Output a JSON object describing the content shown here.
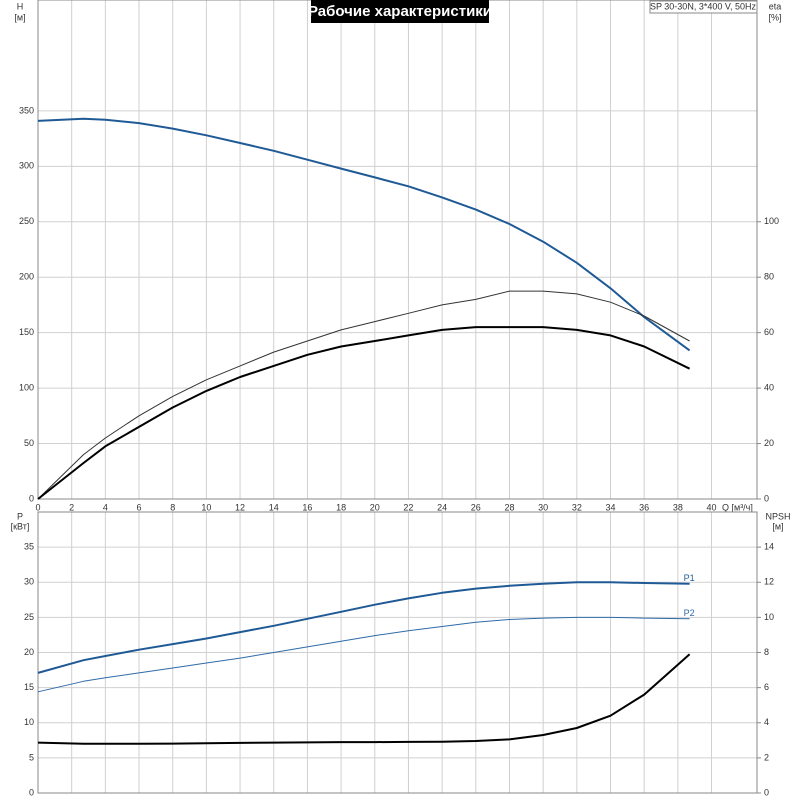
{
  "chart_data": [
    {
      "type": "line",
      "title": "Рабочие характеристики",
      "subtitle": "SP 30-30N, 3*400 V, 50Hz",
      "y_label": "H",
      "y_unit": "[м]",
      "y2_label": "eta",
      "y2_unit": "[%]",
      "x_label": "Q [м³/ч]",
      "x": [
        0,
        2.7,
        4,
        6,
        8,
        10,
        12,
        14,
        16,
        18,
        20,
        22,
        24,
        26,
        28,
        30,
        32,
        34,
        36,
        38.7
      ],
      "xlim": [
        0,
        42.7
      ],
      "xticks": [
        0,
        2,
        4,
        6,
        8,
        10,
        12,
        14,
        16,
        18,
        20,
        22,
        24,
        26,
        28,
        30,
        32,
        34,
        36,
        38,
        40
      ],
      "ylim": [
        0,
        450
      ],
      "yticks": [
        0,
        50,
        100,
        150,
        200,
        250,
        300,
        350
      ],
      "y2lim": [
        0,
        180
      ],
      "y2ticks": [
        0,
        20,
        40,
        60,
        80,
        100
      ],
      "grid": true,
      "series": [
        {
          "color": "#1f5a96",
          "line_width": 2,
          "values": [
            341,
            343,
            342,
            339,
            334,
            328,
            321,
            314,
            306,
            298,
            290,
            282,
            272,
            261,
            248,
            232,
            213,
            190,
            164,
            134
          ]
        },
        {
          "color": "#333333",
          "line_width": 1,
          "axis": "y2",
          "values": [
            0,
            16,
            22,
            30,
            37,
            43,
            48,
            53,
            57,
            61,
            64,
            67,
            70,
            72,
            75,
            75,
            74,
            71,
            66,
            57
          ]
        },
        {
          "color": "#000000",
          "line_width": 2,
          "axis": "y2",
          "values": [
            0,
            13,
            19,
            26,
            33,
            39,
            44,
            48,
            52,
            55,
            57,
            59,
            61,
            62,
            62,
            62,
            61,
            59,
            55,
            47
          ]
        }
      ]
    },
    {
      "type": "line",
      "y_label": "P",
      "y_unit": "[кВт]",
      "y2_label": "NPSH",
      "y2_unit": "[м]",
      "x": [
        0,
        2.7,
        4,
        6,
        8,
        10,
        12,
        14,
        16,
        18,
        20,
        22,
        24,
        26,
        28,
        30,
        32,
        34,
        36,
        38.7
      ],
      "xlim": [
        0,
        42.7
      ],
      "ylim": [
        0,
        40
      ],
      "yticks": [
        0,
        5,
        10,
        15,
        20,
        25,
        30,
        35
      ],
      "y2lim": [
        0,
        16
      ],
      "y2ticks": [
        0,
        2,
        4,
        6,
        8,
        10,
        12,
        14
      ],
      "grid": true,
      "series": [
        {
          "name": "P1",
          "color": "#1f5a96",
          "line_width": 2,
          "values": [
            17.1,
            18.9,
            19.5,
            20.4,
            21.2,
            22.0,
            22.9,
            23.8,
            24.8,
            25.8,
            26.8,
            27.7,
            28.5,
            29.1,
            29.5,
            29.8,
            30.0,
            30.0,
            29.9,
            29.8
          ]
        },
        {
          "name": "P2",
          "color": "#2f6aa8",
          "line_width": 1,
          "values": [
            14.4,
            15.9,
            16.4,
            17.1,
            17.8,
            18.5,
            19.2,
            20.0,
            20.8,
            21.6,
            22.4,
            23.1,
            23.7,
            24.3,
            24.7,
            24.9,
            25.0,
            25.0,
            24.9,
            24.8
          ]
        },
        {
          "color": "#000000",
          "line_width": 2,
          "axis": "y2",
          "values": [
            2.87,
            2.8,
            2.8,
            2.8,
            2.81,
            2.83,
            2.85,
            2.87,
            2.88,
            2.9,
            2.9,
            2.91,
            2.92,
            2.96,
            3.05,
            3.3,
            3.7,
            4.4,
            5.6,
            7.9
          ]
        }
      ]
    }
  ]
}
